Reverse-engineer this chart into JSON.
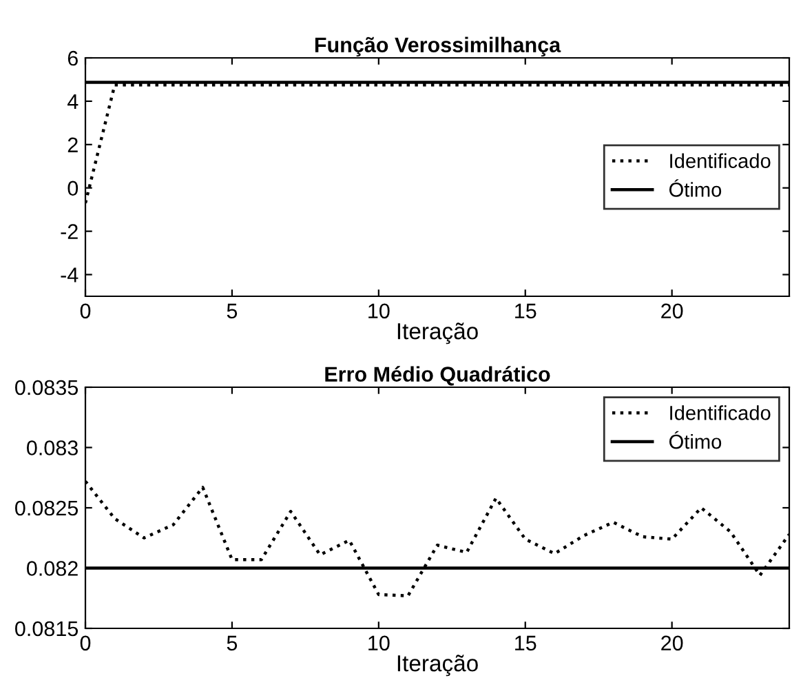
{
  "chart_data": [
    {
      "type": "line",
      "title": "Função Verossimilhança",
      "xlabel": "Iteração",
      "x": [
        0,
        1,
        2,
        3,
        4,
        5,
        6,
        7,
        8,
        9,
        10,
        11,
        12,
        13,
        14,
        15,
        16,
        17,
        18,
        19,
        20,
        21,
        22,
        23,
        24
      ],
      "xlim": [
        0,
        24
      ],
      "xticks": [
        0,
        5,
        10,
        15,
        20
      ],
      "ylim": [
        -5,
        6
      ],
      "yticks": [
        {
          "value": -4,
          "label": "-4"
        },
        {
          "value": -2,
          "label": "-2"
        },
        0,
        2,
        4,
        6
      ],
      "grid": false,
      "legend": "right",
      "series": [
        {
          "name": "Identificado",
          "color": "#000000",
          "line_style": "dotted",
          "values": [
            -0.7,
            4.75,
            4.75,
            4.75,
            4.75,
            4.75,
            4.75,
            4.75,
            4.75,
            4.75,
            4.75,
            4.75,
            4.75,
            4.75,
            4.75,
            4.75,
            4.75,
            4.75,
            4.75,
            4.75,
            4.75,
            4.75,
            4.75,
            4.75,
            4.75
          ]
        },
        {
          "name": "Ótimo",
          "color": "#000000",
          "line_style": "solid",
          "values": [
            4.87,
            4.87,
            4.87,
            4.87,
            4.87,
            4.87,
            4.87,
            4.87,
            4.87,
            4.87,
            4.87,
            4.87,
            4.87,
            4.87,
            4.87,
            4.87,
            4.87,
            4.87,
            4.87,
            4.87,
            4.87,
            4.87,
            4.87,
            4.87,
            4.87
          ]
        }
      ]
    },
    {
      "type": "line",
      "title": "Erro Médio Quadrático",
      "xlabel": "Iteração",
      "x": [
        0,
        1,
        2,
        3,
        4,
        5,
        6,
        7,
        8,
        9,
        10,
        11,
        12,
        13,
        14,
        15,
        16,
        17,
        18,
        19,
        20,
        21,
        22,
        23,
        24
      ],
      "xlim": [
        0,
        24
      ],
      "xticks": [
        0,
        5,
        10,
        15,
        20
      ],
      "ylim": [
        0.0815,
        0.0835
      ],
      "yticks": [
        0.0815,
        0.082,
        0.0825,
        0.083,
        0.0835
      ],
      "grid": false,
      "legend": "top right",
      "series": [
        {
          "name": "Identificado",
          "color": "#000000",
          "line_style": "dotted",
          "values": [
            0.08272,
            0.08241,
            0.08225,
            0.08236,
            0.08267,
            0.08207,
            0.08207,
            0.08247,
            0.08211,
            0.08223,
            0.08178,
            0.08177,
            0.08219,
            0.08213,
            0.08258,
            0.08224,
            0.08212,
            0.08227,
            0.08238,
            0.08226,
            0.08224,
            0.0825,
            0.0823,
            0.08194,
            0.08228
          ]
        },
        {
          "name": "Ótimo",
          "color": "#000000",
          "line_style": "solid",
          "values": [
            0.082,
            0.082,
            0.082,
            0.082,
            0.082,
            0.082,
            0.082,
            0.082,
            0.082,
            0.082,
            0.082,
            0.082,
            0.082,
            0.082,
            0.082,
            0.082,
            0.082,
            0.082,
            0.082,
            0.082,
            0.082,
            0.082,
            0.082,
            0.082,
            0.082
          ]
        }
      ]
    }
  ]
}
